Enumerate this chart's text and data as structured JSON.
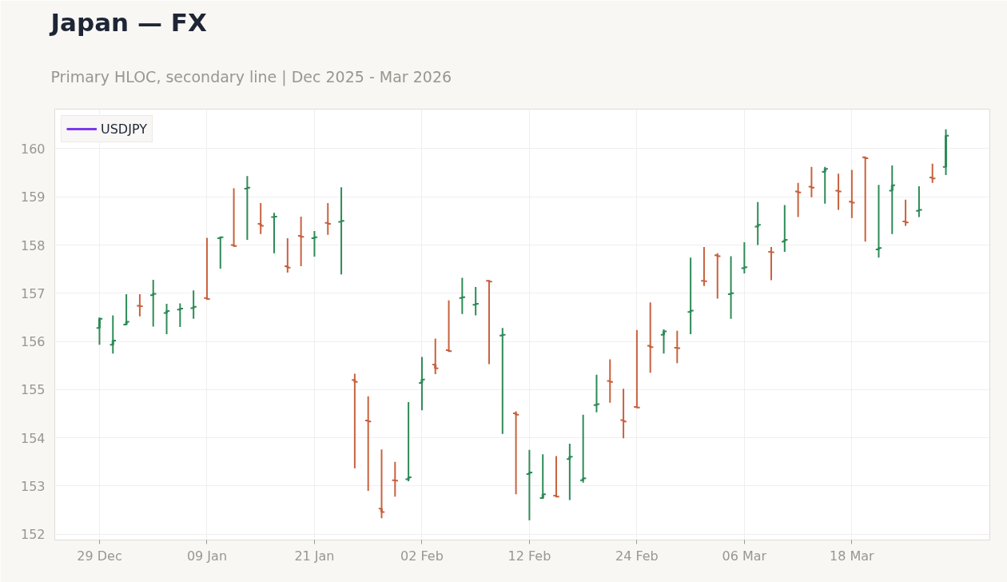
{
  "chart_data": {
    "type": "candlestick",
    "title": "Japan — FX",
    "subtitle": "Primary HLOC, secondary line | Dec 2025 - Mar 2026",
    "categories": [
      "29 Dec",
      null,
      null,
      null,
      null,
      null,
      null,
      null,
      "09 Jan",
      null,
      null,
      null,
      null,
      null,
      null,
      null,
      "21 Jan",
      null,
      null,
      null,
      null,
      null,
      null,
      null,
      "02 Feb",
      null,
      null,
      null,
      null,
      null,
      null,
      null,
      "12 Feb",
      null,
      null,
      null,
      null,
      null,
      null,
      null,
      "24 Feb",
      null,
      null,
      null,
      null,
      null,
      null,
      null,
      "06 Mar",
      null,
      null,
      null,
      null,
      null,
      null,
      null,
      "18 Mar",
      null,
      null,
      null,
      null,
      null,
      null,
      null
    ],
    "ohlc": [
      [
        156.28,
        156.5,
        155.93,
        156.47
      ],
      [
        155.93,
        156.54,
        155.75,
        156.02
      ],
      [
        156.35,
        156.98,
        156.34,
        156.41
      ],
      [
        156.74,
        156.98,
        156.52,
        156.73
      ],
      [
        156.96,
        157.28,
        156.31,
        156.99
      ],
      [
        156.59,
        156.78,
        156.15,
        156.63
      ],
      [
        156.66,
        156.79,
        156.3,
        156.68
      ],
      [
        156.69,
        157.06,
        156.47,
        156.72
      ],
      [
        156.9,
        158.15,
        156.88,
        156.88
      ],
      [
        158.14,
        158.18,
        157.51,
        158.16
      ],
      [
        158.0,
        159.18,
        157.98,
        157.98
      ],
      [
        159.17,
        159.43,
        158.11,
        159.19
      ],
      [
        158.44,
        158.87,
        158.23,
        158.4
      ],
      [
        158.58,
        158.67,
        157.83,
        158.59
      ],
      [
        157.56,
        158.14,
        157.43,
        157.53
      ],
      [
        158.19,
        158.59,
        157.56,
        158.17
      ],
      [
        158.14,
        158.29,
        157.76,
        158.16
      ],
      [
        158.46,
        158.87,
        158.21,
        158.44
      ],
      [
        158.48,
        159.2,
        157.39,
        158.5
      ],
      [
        155.2,
        155.33,
        153.37,
        155.16
      ],
      [
        154.36,
        154.86,
        152.9,
        154.34
      ],
      [
        152.53,
        153.76,
        152.33,
        152.46
      ],
      [
        153.12,
        153.5,
        152.78,
        153.11
      ],
      [
        153.14,
        154.74,
        153.1,
        153.18
      ],
      [
        155.14,
        155.68,
        154.57,
        155.21
      ],
      [
        155.52,
        156.06,
        155.32,
        155.44
      ],
      [
        155.82,
        156.85,
        155.78,
        155.8
      ],
      [
        156.9,
        157.32,
        156.57,
        156.92
      ],
      [
        156.76,
        157.13,
        156.54,
        156.78
      ],
      [
        157.26,
        157.27,
        155.53,
        157.24
      ],
      [
        156.12,
        156.28,
        154.08,
        156.14
      ],
      [
        154.51,
        154.55,
        152.83,
        154.48
      ],
      [
        153.25,
        153.75,
        152.29,
        153.28
      ],
      [
        152.75,
        153.66,
        152.75,
        152.83
      ],
      [
        152.8,
        153.62,
        152.78,
        152.78
      ],
      [
        153.56,
        153.88,
        152.71,
        153.61
      ],
      [
        153.12,
        154.48,
        153.07,
        153.16
      ],
      [
        154.68,
        155.31,
        154.53,
        154.7
      ],
      [
        155.18,
        155.63,
        154.73,
        155.16
      ],
      [
        154.37,
        155.02,
        153.99,
        154.34
      ],
      [
        154.64,
        156.24,
        154.63,
        154.63
      ],
      [
        155.91,
        156.81,
        155.35,
        155.88
      ],
      [
        156.14,
        156.25,
        155.75,
        156.21
      ],
      [
        155.87,
        156.22,
        155.55,
        155.86
      ],
      [
        156.61,
        157.74,
        156.15,
        156.64
      ],
      [
        157.26,
        157.96,
        157.15,
        157.25
      ],
      [
        157.79,
        157.83,
        156.89,
        157.77
      ],
      [
        156.98,
        157.77,
        156.47,
        157.0
      ],
      [
        157.52,
        158.06,
        157.41,
        157.54
      ],
      [
        158.38,
        158.89,
        158.0,
        158.42
      ],
      [
        157.86,
        157.96,
        157.27,
        157.85
      ],
      [
        158.07,
        158.83,
        157.86,
        158.11
      ],
      [
        159.11,
        159.29,
        158.58,
        159.09
      ],
      [
        159.21,
        159.62,
        158.99,
        159.19
      ],
      [
        159.52,
        159.62,
        158.86,
        159.58
      ],
      [
        159.13,
        159.48,
        158.73,
        159.11
      ],
      [
        158.9,
        159.56,
        158.56,
        158.88
      ],
      [
        159.82,
        159.82,
        158.07,
        159.8
      ],
      [
        157.91,
        159.25,
        157.74,
        157.94
      ],
      [
        159.13,
        159.65,
        158.23,
        159.24
      ],
      [
        158.49,
        158.94,
        158.4,
        158.47
      ],
      [
        158.71,
        159.22,
        158.58,
        158.73
      ],
      [
        159.4,
        159.69,
        159.29,
        159.38
      ],
      [
        159.62,
        160.4,
        159.45,
        160.27
      ]
    ],
    "colors": [
      "#2e8b57",
      "#2e8b57",
      "#2e8b57",
      "#c8623f",
      "#2e8b57",
      "#2e8b57",
      "#2e8b57",
      "#2e8b57",
      "#c8623f",
      "#2e8b57",
      "#c8623f",
      "#2e8b57",
      "#c8623f",
      "#2e8b57",
      "#c8623f",
      "#c8623f",
      "#2e8b57",
      "#c8623f",
      "#2e8b57",
      "#c8623f",
      "#c8623f",
      "#c8623f",
      "#c8623f",
      "#2e8b57",
      "#2e8b57",
      "#c8623f",
      "#c8623f",
      "#2e8b57",
      "#2e8b57",
      "#c8623f",
      "#2e8b57",
      "#c8623f",
      "#2e8b57",
      "#2e8b57",
      "#c8623f",
      "#2e8b57",
      "#2e8b57",
      "#2e8b57",
      "#c8623f",
      "#c8623f",
      "#c8623f",
      "#c8623f",
      "#2e8b57",
      "#c8623f",
      "#2e8b57",
      "#c8623f",
      "#c8623f",
      "#2e8b57",
      "#2e8b57",
      "#2e8b57",
      "#c8623f",
      "#2e8b57",
      "#c8623f",
      "#c8623f",
      "#2e8b57",
      "#c8623f",
      "#c8623f",
      "#c8623f",
      "#2e8b57",
      "#2e8b57",
      "#c8623f",
      "#2e8b57",
      "#c8623f",
      "#2e8b57"
    ],
    "series": [
      {
        "name": "USDJPY",
        "type": "line",
        "color": "#7c3aed",
        "values": [
          null,
          null,
          null,
          null,
          null,
          null,
          null,
          null,
          null,
          null,
          null,
          null,
          null,
          null,
          null,
          null,
          null,
          null,
          null,
          null,
          null,
          null,
          null,
          null,
          null,
          null,
          null,
          null,
          null,
          null,
          null,
          null,
          null,
          null,
          null,
          null,
          null,
          null,
          null,
          null,
          null,
          null,
          null,
          null,
          null,
          null,
          null,
          null,
          null,
          null,
          null,
          null,
          null,
          null,
          null,
          null,
          null,
          null,
          null,
          null,
          null,
          null,
          null,
          null
        ]
      }
    ],
    "ylim": [
      151.88,
      160.82
    ],
    "yticks": [
      152,
      153,
      154,
      155,
      156,
      157,
      158,
      159,
      160
    ],
    "grid": true,
    "legend": "top left"
  }
}
